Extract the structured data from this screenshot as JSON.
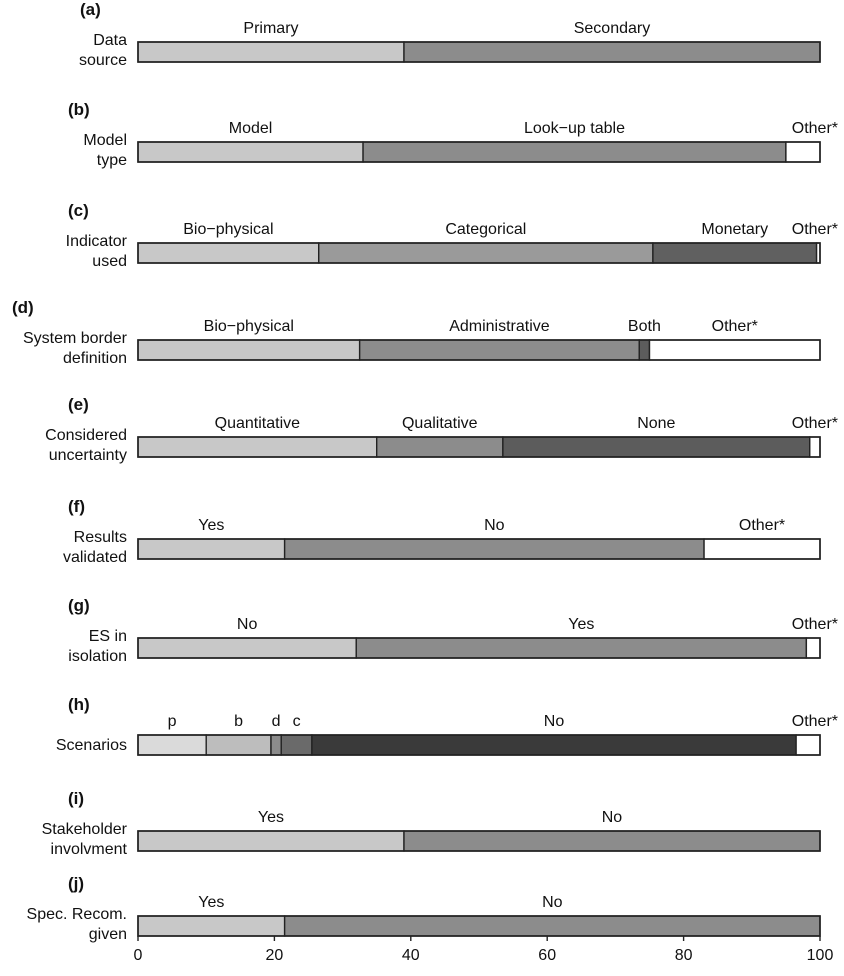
{
  "chart_data": {
    "type": "bar",
    "orientation": "horizontal",
    "stacked": true,
    "xlim": [
      0,
      100
    ],
    "xticks": [
      "0",
      "20",
      "40",
      "60",
      "80",
      "100"
    ],
    "grid": false,
    "rows": [
      {
        "letter": "(a)",
        "label_lines": [
          "Data",
          "source"
        ],
        "segments": [
          {
            "name": "Primary",
            "value": 39,
            "color": "#c8c8c8"
          },
          {
            "name": "Secondary",
            "value": 61,
            "color": "#8c8c8c"
          }
        ]
      },
      {
        "letter": "(b)",
        "label_lines": [
          "Model",
          "type"
        ],
        "segments": [
          {
            "name": "Model",
            "value": 33,
            "color": "#c8c8c8"
          },
          {
            "name": "Look−up table",
            "value": 62,
            "color": "#8c8c8c"
          },
          {
            "name": "Other*",
            "value": 5,
            "color": "#ffffff"
          }
        ]
      },
      {
        "letter": "(c)",
        "label_lines": [
          "Indicator",
          "used"
        ],
        "segments": [
          {
            "name": "Bio−physical",
            "value": 26.5,
            "color": "#c8c8c8"
          },
          {
            "name": "Categorical",
            "value": 49,
            "color": "#9a9a9a"
          },
          {
            "name": "Monetary",
            "value": 24,
            "color": "#606060"
          },
          {
            "name": "Other*",
            "value": 0.5,
            "color": "#ffffff"
          }
        ]
      },
      {
        "letter": "(d)",
        "label_lines": [
          "System border",
          "definition"
        ],
        "segments": [
          {
            "name": "Bio−physical",
            "value": 32.5,
            "color": "#c8c8c8"
          },
          {
            "name": "Administrative",
            "value": 41,
            "color": "#8c8c8c"
          },
          {
            "name": "Both",
            "value": 1.5,
            "color": "#5c5c5c"
          },
          {
            "name": "Other*",
            "value": 25,
            "color": "#ffffff"
          }
        ]
      },
      {
        "letter": "(e)",
        "label_lines": [
          "Considered",
          "uncertainty"
        ],
        "segments": [
          {
            "name": "Quantitative",
            "value": 35,
            "color": "#c8c8c8"
          },
          {
            "name": "Qualitative",
            "value": 18.5,
            "color": "#8c8c8c"
          },
          {
            "name": "None",
            "value": 45,
            "color": "#5c5c5c"
          },
          {
            "name": "Other*",
            "value": 1.5,
            "color": "#ffffff"
          }
        ]
      },
      {
        "letter": "(f)",
        "label_lines": [
          "Results",
          "validated"
        ],
        "segments": [
          {
            "name": "Yes",
            "value": 21.5,
            "color": "#c8c8c8"
          },
          {
            "name": "No",
            "value": 61.5,
            "color": "#8c8c8c"
          },
          {
            "name": "Other*",
            "value": 17,
            "color": "#ffffff"
          }
        ]
      },
      {
        "letter": "(g)",
        "label_lines": [
          "ES in",
          "isolation"
        ],
        "segments": [
          {
            "name": "No",
            "value": 32,
            "color": "#c8c8c8"
          },
          {
            "name": "Yes",
            "value": 66,
            "color": "#8c8c8c"
          },
          {
            "name": "Other*",
            "value": 2,
            "color": "#ffffff"
          }
        ]
      },
      {
        "letter": "(h)",
        "label_lines": [
          "Scenarios"
        ],
        "segments": [
          {
            "name": "p",
            "value": 10,
            "color": "#dadada"
          },
          {
            "name": "b",
            "value": 9.5,
            "color": "#bdbdbd"
          },
          {
            "name": "d",
            "value": 1.5,
            "color": "#8c8c8c"
          },
          {
            "name": "c",
            "value": 4.5,
            "color": "#6a6a6a"
          },
          {
            "name": "No",
            "value": 71,
            "color": "#3a3a3a"
          },
          {
            "name": "Other*",
            "value": 3.5,
            "color": "#ffffff"
          }
        ]
      },
      {
        "letter": "(i)",
        "label_lines": [
          "Stakeholder",
          "involvment"
        ],
        "segments": [
          {
            "name": "Yes",
            "value": 39,
            "color": "#c8c8c8"
          },
          {
            "name": "No",
            "value": 61,
            "color": "#8c8c8c"
          }
        ]
      },
      {
        "letter": "(j)",
        "label_lines": [
          "Spec. Recom.",
          "given"
        ],
        "segments": [
          {
            "name": "Yes",
            "value": 21.5,
            "color": "#c8c8c8"
          },
          {
            "name": "No",
            "value": 78.5,
            "color": "#8c8c8c"
          }
        ]
      }
    ]
  }
}
